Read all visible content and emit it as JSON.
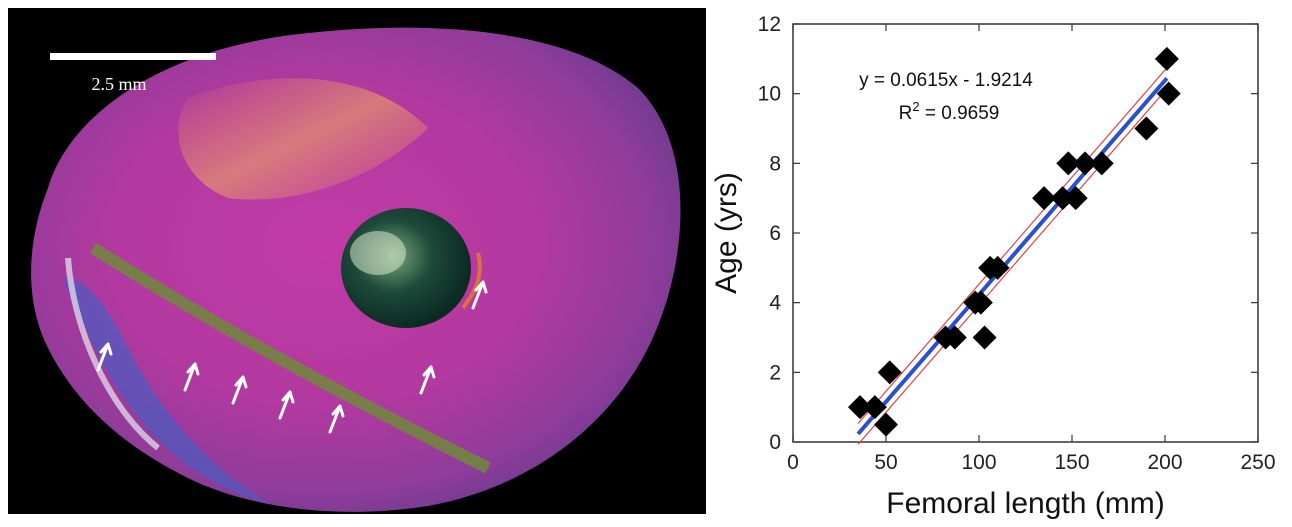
{
  "figure": {
    "scale_bar_label": "2.5 mm"
  },
  "chart_data": {
    "type": "scatter",
    "x_label": "Femoral length (mm)",
    "y_label": "Age (yrs)",
    "xlim": [
      0,
      250
    ],
    "ylim": [
      0,
      12
    ],
    "x_ticks": [
      0,
      50,
      100,
      150,
      200,
      250
    ],
    "y_ticks": [
      0,
      2,
      4,
      6,
      8,
      10,
      12
    ],
    "grid": false,
    "equation": "y = 0.0615x - 1.9214",
    "r_squared_prefix": "R",
    "r_squared_sup": "2",
    "r_squared_value": " = 0.9659",
    "fit": {
      "slope": 0.0615,
      "intercept": -1.9214,
      "x_range": [
        35,
        201
      ]
    },
    "confidence_band": {
      "offset": 0.3,
      "x_range": [
        35,
        201
      ]
    },
    "series": [
      {
        "marker": "diamond",
        "x": [
          36,
          44,
          50,
          52,
          82,
          87,
          98,
          101,
          103,
          106,
          110,
          135,
          145,
          148,
          152,
          157,
          166,
          190,
          201,
          202
        ],
        "y": [
          1,
          1,
          0.5,
          2,
          3,
          3,
          4,
          4,
          3,
          5,
          5,
          7,
          7,
          8,
          7,
          8,
          8,
          9,
          11,
          10
        ]
      }
    ],
    "colors": {
      "points": "#000000",
      "fit_line": "#2a4fd1",
      "band": "#e04040",
      "axis": "#333333"
    }
  }
}
